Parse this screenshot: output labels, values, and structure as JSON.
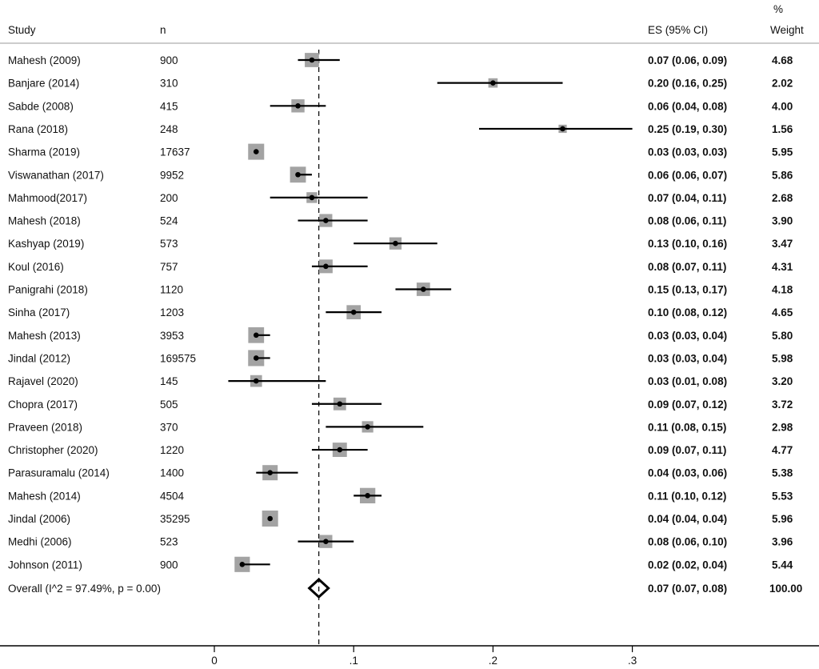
{
  "chart_data": {
    "type": "forest",
    "headers": {
      "study": "Study",
      "n": "n",
      "es": "ES (95% CI)",
      "weight_pct": "%",
      "weight": "Weight"
    },
    "xticks": [
      0,
      0.1,
      0.2,
      0.3
    ],
    "xtick_labels": [
      "0",
      ".1",
      ".2",
      ".3"
    ],
    "xlim": [
      0,
      0.3
    ],
    "studies": [
      {
        "study": "Mahesh (2009)",
        "n": "900",
        "es": 0.07,
        "lo": 0.06,
        "hi": 0.09,
        "es_text": "0.07 (0.06, 0.09)",
        "weight": "4.68"
      },
      {
        "study": "Banjare (2014)",
        "n": "310",
        "es": 0.2,
        "lo": 0.16,
        "hi": 0.25,
        "es_text": "0.20 (0.16, 0.25)",
        "weight": "2.02"
      },
      {
        "study": "Sabde (2008)",
        "n": "415",
        "es": 0.06,
        "lo": 0.04,
        "hi": 0.08,
        "es_text": "0.06 (0.04, 0.08)",
        "weight": "4.00"
      },
      {
        "study": "Rana (2018)",
        "n": "248",
        "es": 0.25,
        "lo": 0.19,
        "hi": 0.3,
        "es_text": "0.25 (0.19, 0.30)",
        "weight": "1.56"
      },
      {
        "study": "Sharma (2019)",
        "n": "17637",
        "es": 0.03,
        "lo": 0.03,
        "hi": 0.03,
        "es_text": "0.03 (0.03, 0.03)",
        "weight": "5.95"
      },
      {
        "study": "Viswanathan (2017)",
        "n": "9952",
        "es": 0.06,
        "lo": 0.06,
        "hi": 0.07,
        "es_text": "0.06 (0.06, 0.07)",
        "weight": "5.86"
      },
      {
        "study": "Mahmood(2017)",
        "n": "200",
        "es": 0.07,
        "lo": 0.04,
        "hi": 0.11,
        "es_text": "0.07 (0.04, 0.11)",
        "weight": "2.68"
      },
      {
        "study": "Mahesh (2018)",
        "n": "524",
        "es": 0.08,
        "lo": 0.06,
        "hi": 0.11,
        "es_text": "0.08 (0.06, 0.11)",
        "weight": "3.90"
      },
      {
        "study": "Kashyap (2019)",
        "n": "573",
        "es": 0.13,
        "lo": 0.1,
        "hi": 0.16,
        "es_text": "0.13 (0.10, 0.16)",
        "weight": "3.47"
      },
      {
        "study": "Koul (2016)",
        "n": "757",
        "es": 0.08,
        "lo": 0.07,
        "hi": 0.11,
        "es_text": "0.08 (0.07, 0.11)",
        "weight": "4.31"
      },
      {
        "study": "Panigrahi (2018)",
        "n": "1120",
        "es": 0.15,
        "lo": 0.13,
        "hi": 0.17,
        "es_text": "0.15 (0.13, 0.17)",
        "weight": "4.18"
      },
      {
        "study": "Sinha (2017)",
        "n": "1203",
        "es": 0.1,
        "lo": 0.08,
        "hi": 0.12,
        "es_text": "0.10 (0.08, 0.12)",
        "weight": "4.65"
      },
      {
        "study": "Mahesh (2013)",
        "n": "3953",
        "es": 0.03,
        "lo": 0.03,
        "hi": 0.04,
        "es_text": "0.03 (0.03, 0.04)",
        "weight": "5.80"
      },
      {
        "study": "Jindal (2012)",
        "n": "169575",
        "es": 0.03,
        "lo": 0.03,
        "hi": 0.04,
        "es_text": "0.03 (0.03, 0.04)",
        "weight": "5.98"
      },
      {
        "study": "Rajavel (2020)",
        "n": "145",
        "es": 0.03,
        "lo": 0.01,
        "hi": 0.08,
        "es_text": "0.03 (0.01, 0.08)",
        "weight": "3.20"
      },
      {
        "study": "Chopra (2017)",
        "n": "505",
        "es": 0.09,
        "lo": 0.07,
        "hi": 0.12,
        "es_text": "0.09 (0.07, 0.12)",
        "weight": "3.72"
      },
      {
        "study": "Praveen (2018)",
        "n": "370",
        "es": 0.11,
        "lo": 0.08,
        "hi": 0.15,
        "es_text": "0.11 (0.08, 0.15)",
        "weight": "2.98"
      },
      {
        "study": "Christopher (2020)",
        "n": "1220",
        "es": 0.09,
        "lo": 0.07,
        "hi": 0.11,
        "es_text": "0.09 (0.07, 0.11)",
        "weight": "4.77"
      },
      {
        "study": "Parasuramalu (2014)",
        "n": "1400",
        "es": 0.04,
        "lo": 0.03,
        "hi": 0.06,
        "es_text": "0.04 (0.03, 0.06)",
        "weight": "5.38"
      },
      {
        "study": "Mahesh (2014)",
        "n": "4504",
        "es": 0.11,
        "lo": 0.1,
        "hi": 0.12,
        "es_text": "0.11 (0.10, 0.12)",
        "weight": "5.53"
      },
      {
        "study": "Jindal (2006)",
        "n": "35295",
        "es": 0.04,
        "lo": 0.04,
        "hi": 0.04,
        "es_text": "0.04 (0.04, 0.04)",
        "weight": "5.96"
      },
      {
        "study": "Medhi (2006)",
        "n": "523",
        "es": 0.08,
        "lo": 0.06,
        "hi": 0.1,
        "es_text": "0.08 (0.06, 0.10)",
        "weight": "3.96"
      },
      {
        "study": "Johnson (2011)",
        "n": "900",
        "es": 0.02,
        "lo": 0.02,
        "hi": 0.04,
        "es_text": "0.02 (0.02, 0.04)",
        "weight": "5.44"
      }
    ],
    "overall": {
      "label": "Overall  (I^2 = 97.49%, p = 0.00)",
      "es": 0.075,
      "lo": 0.07,
      "hi": 0.08,
      "es_text": "0.07 (0.07, 0.08)",
      "weight": "100.00"
    },
    "colors": {
      "box": "#a3a3a3",
      "line": "#000000"
    }
  }
}
